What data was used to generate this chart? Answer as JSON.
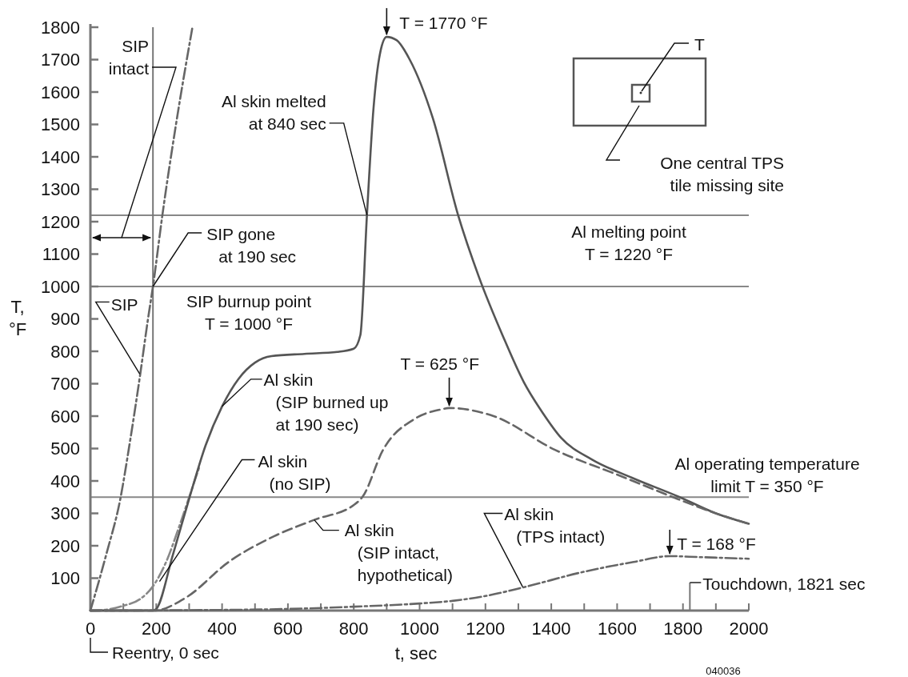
{
  "chart_data": {
    "type": "line",
    "xlabel": "t, sec",
    "ylabel": "T,\n°F",
    "xlim": [
      0,
      2000
    ],
    "ylim": [
      0,
      1800
    ],
    "xticks": [
      0,
      {
        "value": 100,
        "label": null
      },
      200,
      {
        "value": 300,
        "label": null
      },
      400,
      {
        "value": 500,
        "label": null
      },
      600,
      {
        "value": 700,
        "label": null
      },
      800,
      {
        "value": 900,
        "label": null
      },
      1000,
      {
        "value": 1100,
        "label": null
      },
      1200,
      {
        "value": 1300,
        "label": null
      },
      1400,
      {
        "value": 1500,
        "label": null
      },
      1600,
      {
        "value": 1700,
        "label": null
      },
      1800,
      {
        "value": 1900,
        "label": null
      },
      2000
    ],
    "yticks": [
      100,
      200,
      300,
      400,
      500,
      600,
      700,
      800,
      900,
      1000,
      1100,
      1200,
      1300,
      1400,
      1500,
      1600,
      1700,
      1800
    ],
    "series": [
      {
        "color": "#666666",
        "line_style": "dotted",
        "x": [
          0,
          50,
          90,
          120,
          150,
          175,
          190,
          220,
          260,
          310
        ],
        "values": [
          0,
          180,
          340,
          520,
          720,
          900,
          1000,
          1230,
          1500,
          1800
        ]
      },
      {
        "color": "#888888",
        "line_style": "dotted",
        "x": [
          0,
          50,
          100,
          150,
          190,
          230,
          270,
          300,
          330
        ],
        "values": [
          0,
          3,
          15,
          35,
          75,
          150,
          260,
          350,
          440
        ]
      },
      {
        "color": "#555555",
        "line_style": "solid",
        "x": [
          0,
          190,
          200,
          250,
          300,
          350,
          400,
          450,
          500,
          550,
          650,
          750,
          800,
          820,
          840,
          860,
          880,
          900,
          930,
          970,
          1040,
          1117,
          1180,
          1253,
          1317,
          1374,
          1430,
          1524,
          1645,
          1790,
          1900,
          2000
        ],
        "values": [
          0,
          0,
          5,
          170,
          345,
          510,
          630,
          715,
          765,
          785,
          792,
          798,
          808,
          850,
          1220,
          1550,
          1720,
          1770,
          1760,
          1700,
          1520,
          1220,
          1030,
          847,
          704,
          610,
          533,
          466,
          410,
          350,
          300,
          268
        ]
      },
      {
        "color": "#666666",
        "line_style": "dashed",
        "x": [
          0,
          194,
          290,
          420,
          559,
          680,
          802,
          828,
          888,
          984,
          1062,
          1090,
          1225,
          1411,
          1599,
          1785,
          1900,
          2000
        ],
        "values": [
          0,
          0,
          40,
          150,
          230,
          280,
          327,
          353,
          494,
          591,
          620,
          625,
          600,
          496,
          420,
          344,
          300,
          268
        ]
      },
      {
        "color": "#666666",
        "line_style": "dotted",
        "x": [
          0,
          400,
          600,
          800,
          1000,
          1100,
          1200,
          1320,
          1500,
          1650,
          1760,
          1850,
          2000
        ],
        "values": [
          0,
          2,
          5,
          12,
          22,
          30,
          45,
          73,
          120,
          150,
          168,
          165,
          160
        ]
      }
    ],
    "ref_lines": [
      {
        "axis": "y",
        "value": 1220,
        "label": "Al melting point\nT = 1220 °F"
      },
      {
        "axis": "y",
        "value": 1000,
        "label": "SIP burnup point\nT = 1000 °F"
      },
      {
        "axis": "y",
        "value": 350,
        "label": "Al operating temperature\nlimit T = 350 °F"
      },
      {
        "axis": "x",
        "value": 190
      },
      {
        "axis": "x",
        "value": 1821,
        "label": "Touchdown, 1821 sec"
      }
    ],
    "annotations": [
      {
        "text": "T = 1770 °F",
        "x": 900,
        "y": 1770
      },
      {
        "text": "T = 625 °F",
        "x": 1090,
        "y": 625
      },
      {
        "text": "T = 168 °F",
        "x": 1760,
        "y": 168
      },
      {
        "text": "Al skin melted\nat 840 sec",
        "x": 840,
        "y": 1220
      },
      {
        "text": "SIP gone\nat 190 sec",
        "x": 190,
        "y": 1000
      },
      "SIP\nintact",
      {
        "text": "SIP",
        "x": 150,
        "y": 730
      },
      {
        "text": "Al skin\n(SIP burned up\nat 190 sec)",
        "x": 400,
        "y": 630
      },
      {
        "text": "Al skin\n(no SIP)",
        "x": 210,
        "y": 90
      },
      {
        "text": "Al skin\n(SIP intact,\nhypothetical)",
        "x": 680,
        "y": 280
      },
      {
        "text": "Al skin\n(TPS intact)",
        "x": 1313,
        "y": 73
      },
      {
        "text": "Reentry, 0 sec",
        "x": 0,
        "y": 0
      },
      "T",
      "One central TPS\ntile missing site",
      "040036"
    ]
  }
}
